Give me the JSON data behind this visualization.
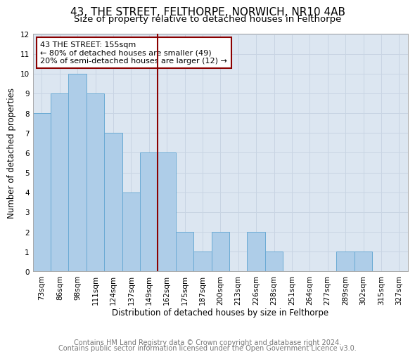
{
  "title": "43, THE STREET, FELTHORPE, NORWICH, NR10 4AB",
  "subtitle": "Size of property relative to detached houses in Felthorpe",
  "xlabel": "Distribution of detached houses by size in Felthorpe",
  "ylabel": "Number of detached properties",
  "footnote1": "Contains HM Land Registry data © Crown copyright and database right 2024.",
  "footnote2": "Contains public sector information licensed under the Open Government Licence v3.0.",
  "categories": [
    "73sqm",
    "86sqm",
    "98sqm",
    "111sqm",
    "124sqm",
    "137sqm",
    "149sqm",
    "162sqm",
    "175sqm",
    "187sqm",
    "200sqm",
    "213sqm",
    "226sqm",
    "238sqm",
    "251sqm",
    "264sqm",
    "277sqm",
    "289sqm",
    "302sqm",
    "315sqm",
    "327sqm"
  ],
  "values": [
    8,
    9,
    10,
    9,
    7,
    4,
    6,
    6,
    2,
    1,
    2,
    0,
    2,
    1,
    0,
    0,
    0,
    1,
    1,
    0,
    0
  ],
  "bar_color": "#aecde8",
  "bar_edge_color": "#6aaad4",
  "subject_line_color": "#8b0000",
  "annotation_text": "43 THE STREET: 155sqm\n← 80% of detached houses are smaller (49)\n20% of semi-detached houses are larger (12) →",
  "annotation_box_color": "#8b0000",
  "annotation_box_facecolor": "white",
  "ylim": [
    0,
    12
  ],
  "yticks": [
    0,
    1,
    2,
    3,
    4,
    5,
    6,
    7,
    8,
    9,
    10,
    11,
    12
  ],
  "grid_color": "#c8d4e3",
  "background_color": "#dce6f1",
  "title_fontsize": 11,
  "subtitle_fontsize": 9.5,
  "axis_label_fontsize": 8.5,
  "tick_fontsize": 7.5,
  "footnote_fontsize": 7
}
